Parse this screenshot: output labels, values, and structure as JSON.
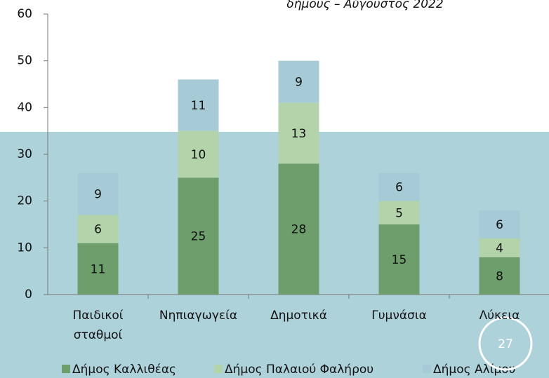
{
  "chart_data": {
    "type": "bar",
    "stacked": true,
    "title": "δήμους – Αύγουστος 2022",
    "categories": [
      "Παιδικοί σταθμοί",
      "Νηπιαγωγεία",
      "Δημοτικά",
      "Γυμνάσια",
      "Λύκεια"
    ],
    "series": [
      {
        "name": "Δήμος Καλλιθέας",
        "color": "#6d9e6b",
        "values": [
          11,
          25,
          28,
          15,
          8
        ]
      },
      {
        "name": "Δήμος Παλαιού Φαλήρου",
        "color": "#b3d3ab",
        "values": [
          6,
          10,
          13,
          5,
          4
        ]
      },
      {
        "name": "Δήμος Αλίμου",
        "color": "#a6cbd6",
        "values": [
          9,
          11,
          9,
          6,
          6
        ]
      }
    ],
    "ylim": [
      0,
      60
    ],
    "yticks": [
      0,
      10,
      20,
      30,
      40,
      50,
      60
    ],
    "grid": false,
    "legend": "bottom"
  },
  "slide_number": "27"
}
